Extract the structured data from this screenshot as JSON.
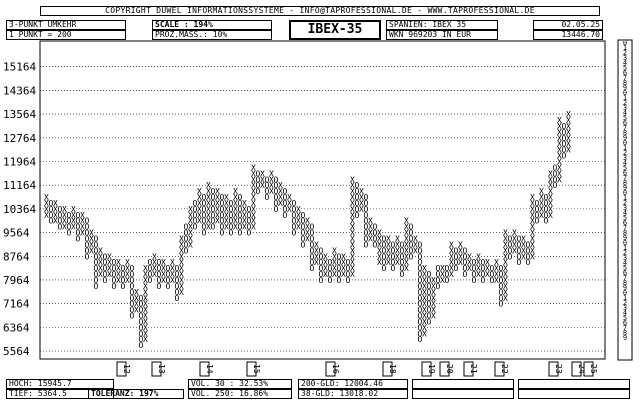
{
  "header": {
    "copyright": "COPYRIGHT  DUWEL INFORMATIONSSYSTEME - INFO@TAPROFESSIONAL.DE - WWW.TAPROFESSIONAL.DE",
    "reversal": "3-PUNKT UMKEHR",
    "point": "1 PUNKT = 200",
    "scale": "SCALE : 194%",
    "proz": "PROZ.MASS.: 10%",
    "title": "IBEX-35",
    "market": "SPANIEN: IBEX 35",
    "wkn": "WKN 969203   IN EUR",
    "date": "02.05.25",
    "price": "13446.70"
  },
  "footer": {
    "hoch": "HOCH: 15945.7",
    "tief": "TIEF: 5364.5",
    "toleranz": "TOLERANZ: 197%",
    "vol30": "VOL. 30 : 32.53%",
    "vol250": "VOL. 250: 16.86%",
    "gld200": "200-GLD: 12004.46",
    "gld38": "38-GLD: 13018.02"
  },
  "chart_data": {
    "type": "point-and-figure",
    "title": "IBEX-35",
    "box_size": 200,
    "reversal": 3,
    "y_ticks": [
      5564,
      6364,
      7164,
      7964,
      8764,
      9564,
      10364,
      11164,
      11964,
      12764,
      13564,
      14364,
      15164
    ],
    "ylim": [
      5364,
      15964
    ],
    "grid": true,
    "column_markers": [
      "12",
      "13",
      "14",
      "15",
      "16",
      "18",
      "19",
      "20",
      "21",
      "22",
      "23",
      "24",
      "25"
    ],
    "columns": [
      {
        "t": "X",
        "lo": 10164,
        "hi": 10764
      },
      {
        "t": "O",
        "lo": 9964,
        "hi": 10564
      },
      {
        "t": "X",
        "lo": 9964,
        "hi": 10564
      },
      {
        "t": "O",
        "lo": 9764,
        "hi": 10364
      },
      {
        "t": "X",
        "lo": 9764,
        "hi": 10364
      },
      {
        "t": "O",
        "lo": 9564,
        "hi": 10164
      },
      {
        "t": "X",
        "lo": 9764,
        "hi": 10364
      },
      {
        "t": "O",
        "lo": 9364,
        "hi": 10164
      },
      {
        "t": "X",
        "lo": 9564,
        "hi": 10164
      },
      {
        "t": "O",
        "lo": 8764,
        "hi": 9964
      },
      {
        "t": "X",
        "lo": 8964,
        "hi": 9564
      },
      {
        "t": "O",
        "lo": 7764,
        "hi": 9364
      },
      {
        "t": "X",
        "lo": 8164,
        "hi": 8964
      },
      {
        "t": "O",
        "lo": 7964,
        "hi": 8764
      },
      {
        "t": "X",
        "lo": 8164,
        "hi": 8764
      },
      {
        "t": "O",
        "lo": 7764,
        "hi": 8564
      },
      {
        "t": "X",
        "lo": 7964,
        "hi": 8564
      },
      {
        "t": "O",
        "lo": 7764,
        "hi": 8364
      },
      {
        "t": "X",
        "lo": 7964,
        "hi": 8564
      },
      {
        "t": "O",
        "lo": 6764,
        "hi": 8364
      },
      {
        "t": "X",
        "lo": 6964,
        "hi": 7564
      },
      {
        "t": "O",
        "lo": 5764,
        "hi": 7364
      },
      {
        "t": "X",
        "lo": 5964,
        "hi": 8364
      },
      {
        "t": "O",
        "lo": 7964,
        "hi": 8564
      },
      {
        "t": "X",
        "lo": 8164,
        "hi": 8764
      },
      {
        "t": "O",
        "lo": 7764,
        "hi": 8564
      },
      {
        "t": "X",
        "lo": 7964,
        "hi": 8564
      },
      {
        "t": "O",
        "lo": 7764,
        "hi": 8364
      },
      {
        "t": "X",
        "lo": 7964,
        "hi": 8564
      },
      {
        "t": "O",
        "lo": 7364,
        "hi": 8364
      },
      {
        "t": "X",
        "lo": 7564,
        "hi": 9364
      },
      {
        "t": "O",
        "lo": 8964,
        "hi": 9764
      },
      {
        "t": "X",
        "lo": 9164,
        "hi": 10364
      },
      {
        "t": "O",
        "lo": 9764,
        "hi": 10564
      },
      {
        "t": "X",
        "lo": 9964,
        "hi": 10964
      },
      {
        "t": "O",
        "lo": 9564,
        "hi": 10764
      },
      {
        "t": "X",
        "lo": 9764,
        "hi": 11164
      },
      {
        "t": "O",
        "lo": 9764,
        "hi": 10964
      },
      {
        "t": "X",
        "lo": 9964,
        "hi": 10964
      },
      {
        "t": "O",
        "lo": 9564,
        "hi": 10764
      },
      {
        "t": "X",
        "lo": 9764,
        "hi": 10764
      },
      {
        "t": "O",
        "lo": 9564,
        "hi": 10564
      },
      {
        "t": "X",
        "lo": 9764,
        "hi": 10964
      },
      {
        "t": "O",
        "lo": 9564,
        "hi": 10764
      },
      {
        "t": "X",
        "lo": 9764,
        "hi": 10564
      },
      {
        "t": "O",
        "lo": 9564,
        "hi": 10364
      },
      {
        "t": "X",
        "lo": 9764,
        "hi": 11764
      },
      {
        "t": "O",
        "lo": 10964,
        "hi": 11564
      },
      {
        "t": "X",
        "lo": 11164,
        "hi": 11564
      },
      {
        "t": "O",
        "lo": 10764,
        "hi": 11364
      },
      {
        "t": "X",
        "lo": 10964,
        "hi": 11564
      },
      {
        "t": "O",
        "lo": 10364,
        "hi": 11364
      },
      {
        "t": "X",
        "lo": 10564,
        "hi": 11164
      },
      {
        "t": "O",
        "lo": 10164,
        "hi": 10964
      },
      {
        "t": "X",
        "lo": 10364,
        "hi": 10764
      },
      {
        "t": "O",
        "lo": 9564,
        "hi": 10564
      },
      {
        "t": "X",
        "lo": 9764,
        "hi": 10364
      },
      {
        "t": "O",
        "lo": 9164,
        "hi": 10164
      },
      {
        "t": "X",
        "lo": 9364,
        "hi": 9964
      },
      {
        "t": "O",
        "lo": 8364,
        "hi": 9764
      },
      {
        "t": "X",
        "lo": 8564,
        "hi": 9164
      },
      {
        "t": "O",
        "lo": 7964,
        "hi": 8964
      },
      {
        "t": "X",
        "lo": 8164,
        "hi": 8764
      },
      {
        "t": "O",
        "lo": 7964,
        "hi": 8564
      },
      {
        "t": "X",
        "lo": 8164,
        "hi": 8964
      },
      {
        "t": "O",
        "lo": 7964,
        "hi": 8764
      },
      {
        "t": "X",
        "lo": 8164,
        "hi": 8764
      },
      {
        "t": "O",
        "lo": 7964,
        "hi": 8564
      },
      {
        "t": "X",
        "lo": 8164,
        "hi": 11364
      },
      {
        "t": "O",
        "lo": 10164,
        "hi": 11164
      },
      {
        "t": "X",
        "lo": 10364,
        "hi": 10964
      },
      {
        "t": "O",
        "lo": 9164,
        "hi": 10764
      },
      {
        "t": "X",
        "lo": 9364,
        "hi": 9964
      },
      {
        "t": "O",
        "lo": 9164,
        "hi": 9764
      },
      {
        "t": "X",
        "lo": 8564,
        "hi": 9564
      },
      {
        "t": "O",
        "lo": 8364,
        "hi": 9364
      },
      {
        "t": "X",
        "lo": 8564,
        "hi": 9364
      },
      {
        "t": "O",
        "lo": 8364,
        "hi": 9164
      },
      {
        "t": "X",
        "lo": 8564,
        "hi": 9364
      },
      {
        "t": "O",
        "lo": 8164,
        "hi": 9164
      },
      {
        "t": "X",
        "lo": 8364,
        "hi": 9964
      },
      {
        "t": "O",
        "lo": 8764,
        "hi": 9764
      },
      {
        "t": "X",
        "lo": 8964,
        "hi": 9364
      },
      {
        "t": "O",
        "lo": 5964,
        "hi": 9164
      },
      {
        "t": "X",
        "lo": 6164,
        "hi": 8364
      },
      {
        "t": "O",
        "lo": 6564,
        "hi": 8164
      },
      {
        "t": "X",
        "lo": 6764,
        "hi": 7964
      },
      {
        "t": "O",
        "lo": 7764,
        "hi": 8364
      },
      {
        "t": "X",
        "lo": 7964,
        "hi": 8364
      },
      {
        "t": "O",
        "lo": 7964,
        "hi": 8364
      },
      {
        "t": "X",
        "lo": 8164,
        "hi": 9164
      },
      {
        "t": "O",
        "lo": 8364,
        "hi": 8964
      },
      {
        "t": "X",
        "lo": 8564,
        "hi": 9164
      },
      {
        "t": "O",
        "lo": 8164,
        "hi": 8964
      },
      {
        "t": "X",
        "lo": 8364,
        "hi": 8764
      },
      {
        "t": "O",
        "lo": 7964,
        "hi": 8564
      },
      {
        "t": "X",
        "lo": 8164,
        "hi": 8764
      },
      {
        "t": "O",
        "lo": 7964,
        "hi": 8564
      },
      {
        "t": "X",
        "lo": 8164,
        "hi": 8564
      },
      {
        "t": "O",
        "lo": 7964,
        "hi": 8364
      },
      {
        "t": "X",
        "lo": 7964,
        "hi": 8564
      },
      {
        "t": "O",
        "lo": 7164,
        "hi": 8364
      },
      {
        "t": "X",
        "lo": 7364,
        "hi": 9564
      },
      {
        "t": "O",
        "lo": 8764,
        "hi": 9364
      },
      {
        "t": "X",
        "lo": 8964,
        "hi": 9564
      },
      {
        "t": "O",
        "lo": 8564,
        "hi": 9364
      },
      {
        "t": "X",
        "lo": 8764,
        "hi": 9364
      },
      {
        "t": "O",
        "lo": 8564,
        "hi": 9164
      },
      {
        "t": "X",
        "lo": 8764,
        "hi": 10764
      },
      {
        "t": "O",
        "lo": 9964,
        "hi": 10564
      },
      {
        "t": "X",
        "lo": 10164,
        "hi": 10964
      },
      {
        "t": "O",
        "lo": 9964,
        "hi": 10764
      },
      {
        "t": "X",
        "lo": 10164,
        "hi": 11564
      },
      {
        "t": "O",
        "lo": 11164,
        "hi": 11764
      },
      {
        "t": "X",
        "lo": 11364,
        "hi": 13364
      },
      {
        "t": "O",
        "lo": 12164,
        "hi": 13164
      },
      {
        "t": "X",
        "lo": 12364,
        "hi": 13564
      }
    ]
  }
}
